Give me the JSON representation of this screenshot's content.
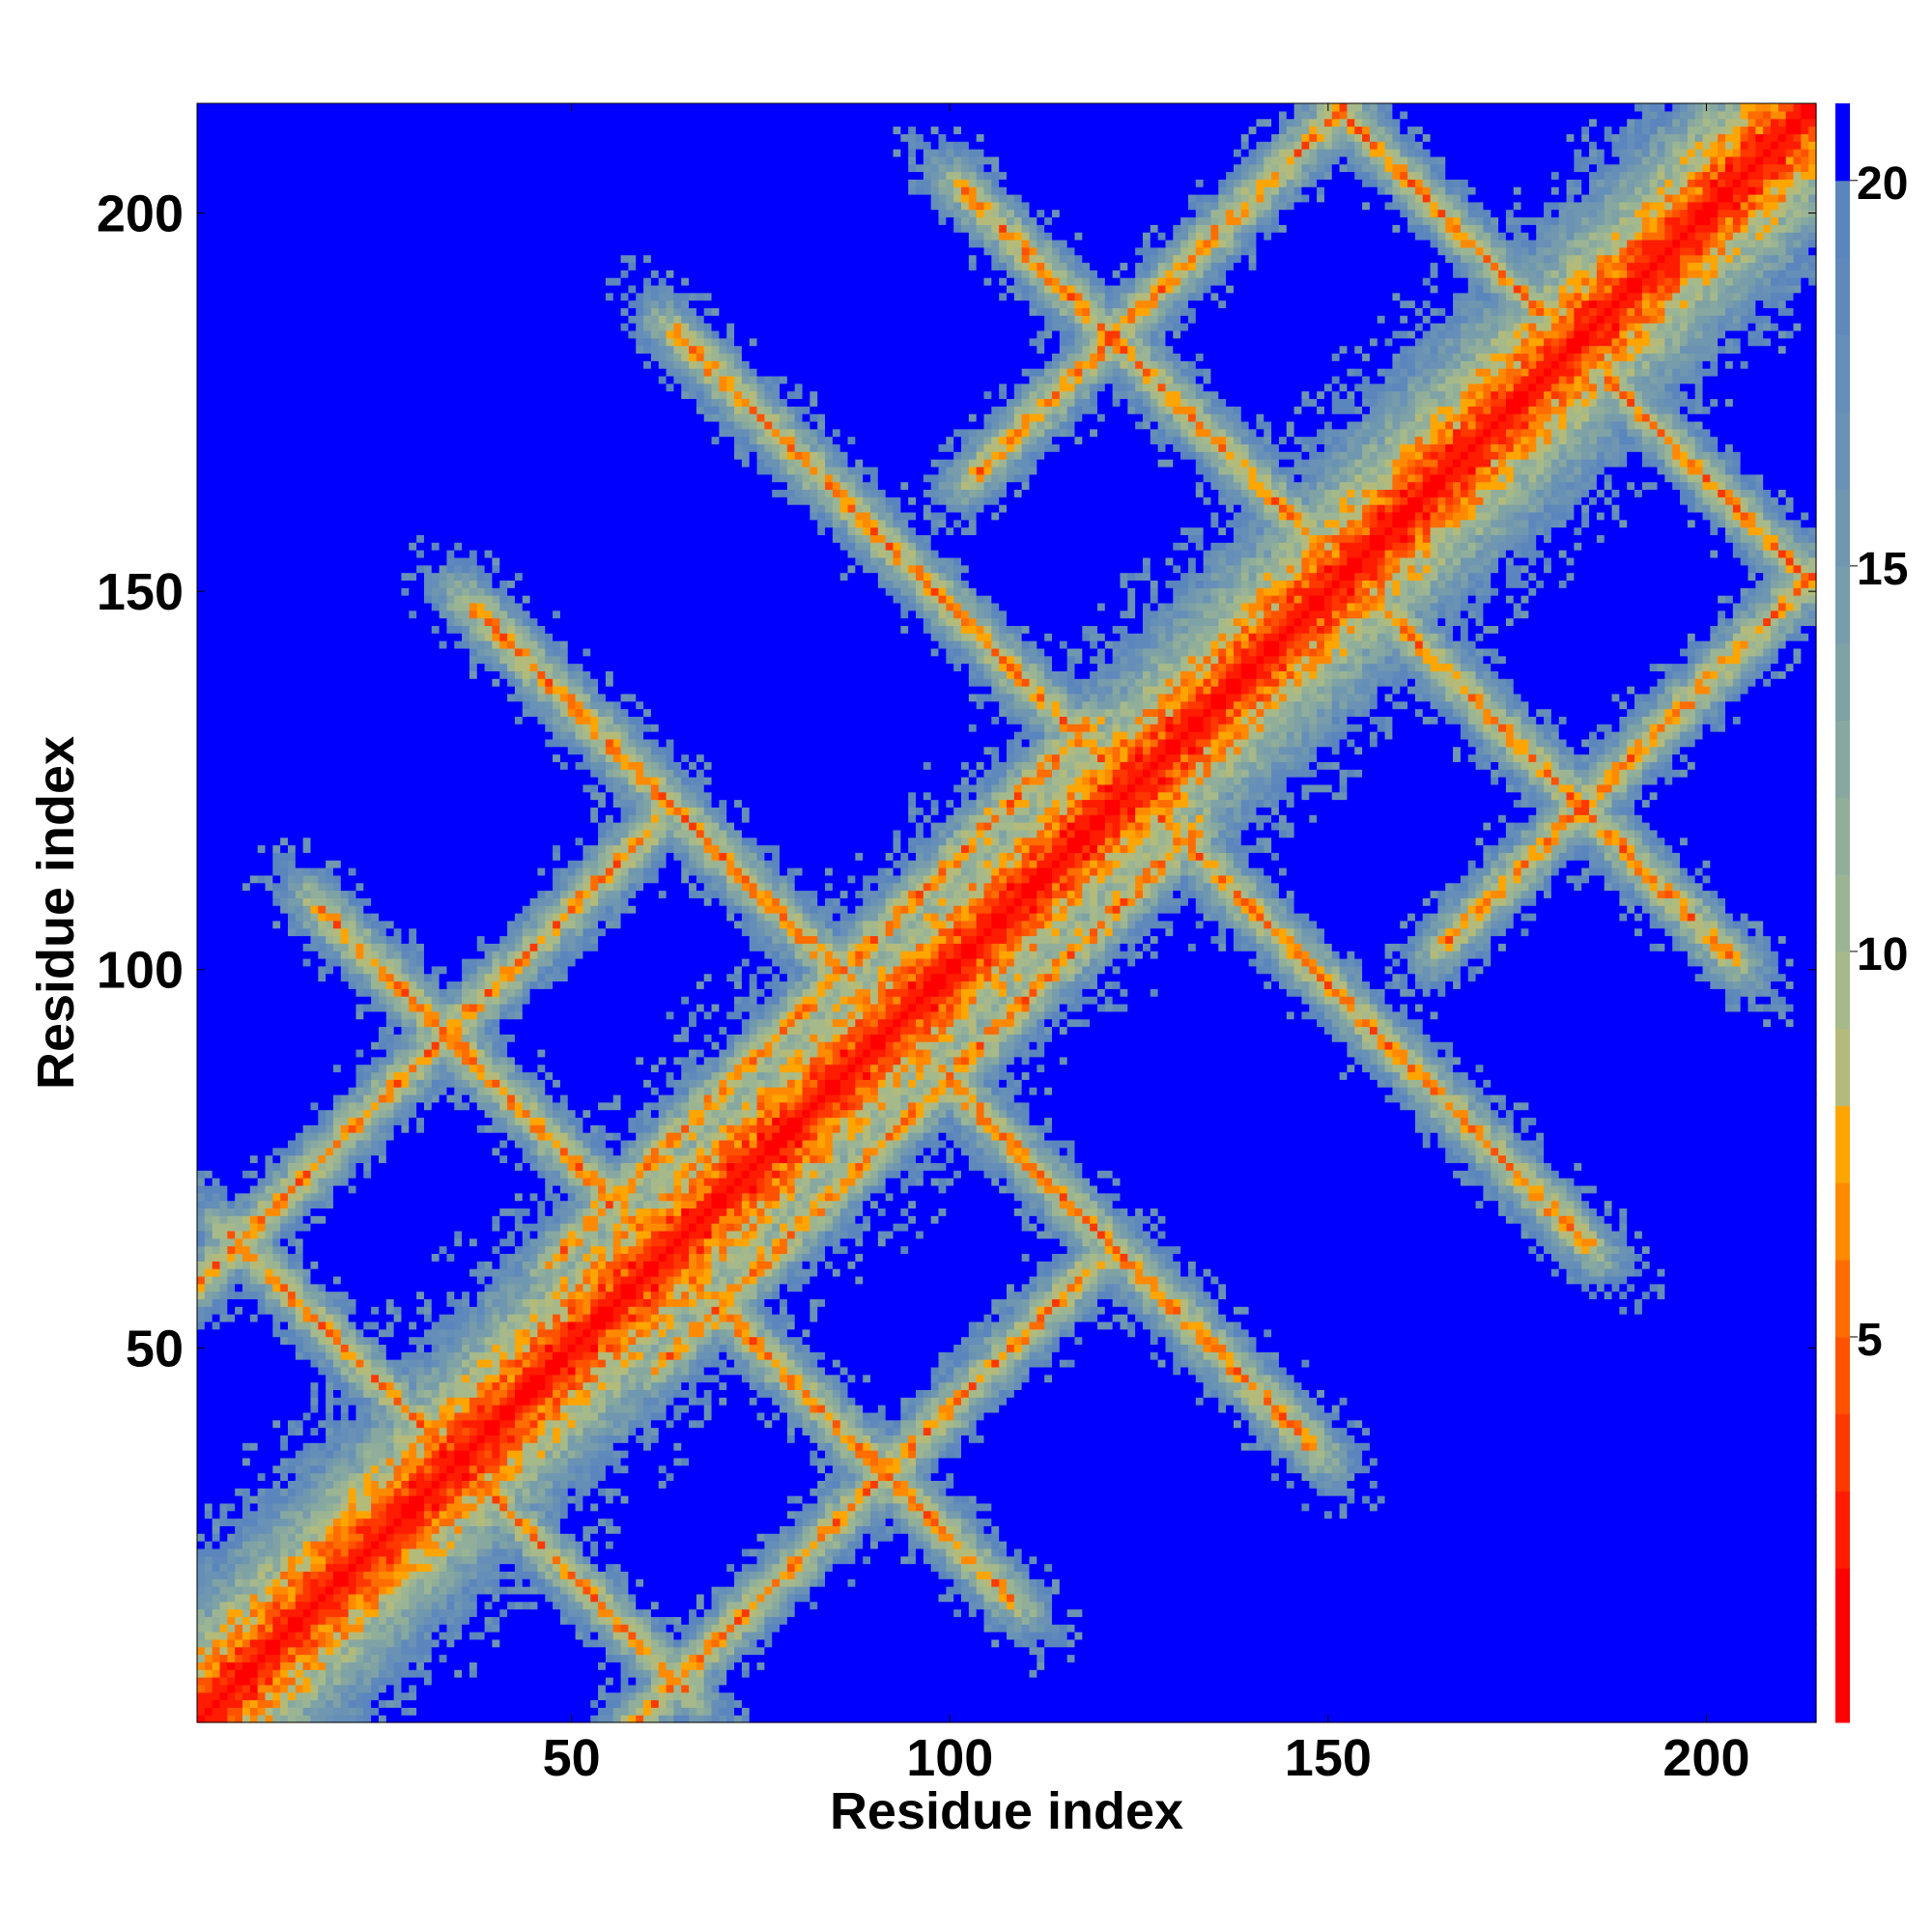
{
  "chart_data": {
    "type": "heatmap",
    "title": "",
    "xlabel": "Residue index",
    "ylabel": "Residue index",
    "n_residues": 214,
    "xlim": [
      1,
      214
    ],
    "ylim": [
      1,
      214
    ],
    "x_ticks": [
      50,
      100,
      150,
      200
    ],
    "x_tick_labels": [
      "50",
      "100",
      "150",
      "200"
    ],
    "y_ticks": [
      50,
      100,
      150,
      200
    ],
    "y_tick_labels": [
      "50",
      "100",
      "150",
      "200"
    ],
    "value_range": [
      0,
      21
    ],
    "colorbar": {
      "ticks": [
        5,
        10,
        15,
        20
      ],
      "tick_labels": [
        "5",
        "10",
        "15",
        "20"
      ],
      "levels": [
        {
          "max": 2,
          "color": "#ff0000"
        },
        {
          "max": 3,
          "color": "#ff1c00"
        },
        {
          "max": 4,
          "color": "#ff3800"
        },
        {
          "max": 5,
          "color": "#ff5200"
        },
        {
          "max": 6,
          "color": "#ff6c00"
        },
        {
          "max": 7,
          "color": "#ff8a00"
        },
        {
          "max": 8,
          "color": "#ffa500"
        },
        {
          "max": 9,
          "color": "#b4bb7a"
        },
        {
          "max": 10,
          "color": "#a6b98a"
        },
        {
          "max": 11,
          "color": "#9bb594"
        },
        {
          "max": 12,
          "color": "#90ae9a"
        },
        {
          "max": 13,
          "color": "#87a8a0"
        },
        {
          "max": 14,
          "color": "#7ea2a5"
        },
        {
          "max": 15,
          "color": "#779cab"
        },
        {
          "max": 16,
          "color": "#7097b0"
        },
        {
          "max": 17,
          "color": "#6a92b4"
        },
        {
          "max": 18,
          "color": "#658eb8"
        },
        {
          "max": 19,
          "color": "#5f89bb"
        },
        {
          "max": 20,
          "color": "#5a85bd"
        },
        {
          "max": 21,
          "color": "#0000ff"
        }
      ]
    },
    "contact_bands": [
      {
        "type": "diag",
        "c": 0,
        "center": 107,
        "length": 214,
        "width": 1.0,
        "strength": 1.0
      },
      {
        "type": "diag",
        "c": 14,
        "center": 90,
        "length": 70,
        "width": 2.2,
        "strength": 0.85
      },
      {
        "type": "diag",
        "c": -14,
        "center": 90,
        "length": 70,
        "width": 2.2,
        "strength": 0.85
      },
      {
        "type": "diag",
        "c": 58,
        "center": 60,
        "length": 60,
        "width": 3.0,
        "strength": 0.8
      },
      {
        "type": "diag",
        "c": -58,
        "center": 60,
        "length": 60,
        "width": 3.0,
        "strength": 0.8
      },
      {
        "type": "diag",
        "c": 62,
        "center": 170,
        "length": 70,
        "width": 3.0,
        "strength": 0.8
      },
      {
        "type": "diag",
        "c": -62,
        "center": 170,
        "length": 70,
        "width": 3.0,
        "strength": 0.8
      },
      {
        "type": "anti",
        "c": 70,
        "center": 35,
        "length": 60,
        "width": 3.5,
        "strength": 0.75
      },
      {
        "type": "anti",
        "c": 125,
        "center": 62,
        "length": 90,
        "width": 3.5,
        "strength": 0.8
      },
      {
        "type": "anti",
        "c": 185,
        "center": 92,
        "length": 110,
        "width": 3.5,
        "strength": 0.8
      },
      {
        "type": "anti",
        "c": 248,
        "center": 124,
        "length": 120,
        "width": 3.5,
        "strength": 0.8
      },
      {
        "type": "anti",
        "c": 305,
        "center": 152,
        "length": 100,
        "width": 3.5,
        "strength": 0.8
      },
      {
        "type": "anti",
        "c": 365,
        "center": 182,
        "length": 70,
        "width": 3.5,
        "strength": 0.75
      }
    ]
  }
}
